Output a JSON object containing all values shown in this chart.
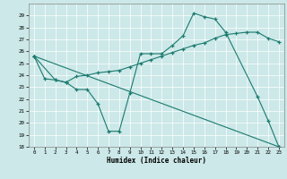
{
  "xlabel": "Humidex (Indice chaleur)",
  "bg_color": "#cce8e8",
  "line_color": "#1a7a6e",
  "grid_color": "#ffffff",
  "ylim": [
    18,
    30
  ],
  "ytick_min": 18,
  "ytick_max": 29,
  "xlim": [
    -0.5,
    23.5
  ],
  "xticks": [
    0,
    1,
    2,
    3,
    4,
    5,
    6,
    7,
    8,
    9,
    10,
    11,
    12,
    13,
    14,
    15,
    16,
    17,
    18,
    19,
    20,
    21,
    22,
    23
  ],
  "line1_x": [
    0,
    1,
    2,
    3,
    4,
    5,
    6,
    7,
    8,
    9,
    10,
    11,
    12,
    13,
    14,
    15,
    16,
    17,
    18,
    21,
    22,
    23
  ],
  "line1_y": [
    25.6,
    23.7,
    23.6,
    23.4,
    22.8,
    22.8,
    21.6,
    19.3,
    19.3,
    22.5,
    25.8,
    25.8,
    25.8,
    26.5,
    27.3,
    29.2,
    28.9,
    28.7,
    27.6,
    22.2,
    20.2,
    18.0
  ],
  "line2_x": [
    0,
    2,
    3,
    4,
    5,
    6,
    7,
    8,
    9,
    10,
    11,
    12,
    13,
    14,
    15,
    16,
    17,
    18,
    19,
    20,
    21,
    22,
    23
  ],
  "line2_y": [
    25.6,
    23.6,
    23.4,
    23.9,
    24.0,
    24.2,
    24.3,
    24.4,
    24.7,
    25.0,
    25.3,
    25.6,
    25.9,
    26.2,
    26.5,
    26.7,
    27.1,
    27.4,
    27.5,
    27.6,
    27.6,
    27.1,
    26.8
  ],
  "line3_x": [
    0,
    23
  ],
  "line3_y": [
    25.6,
    18.0
  ]
}
